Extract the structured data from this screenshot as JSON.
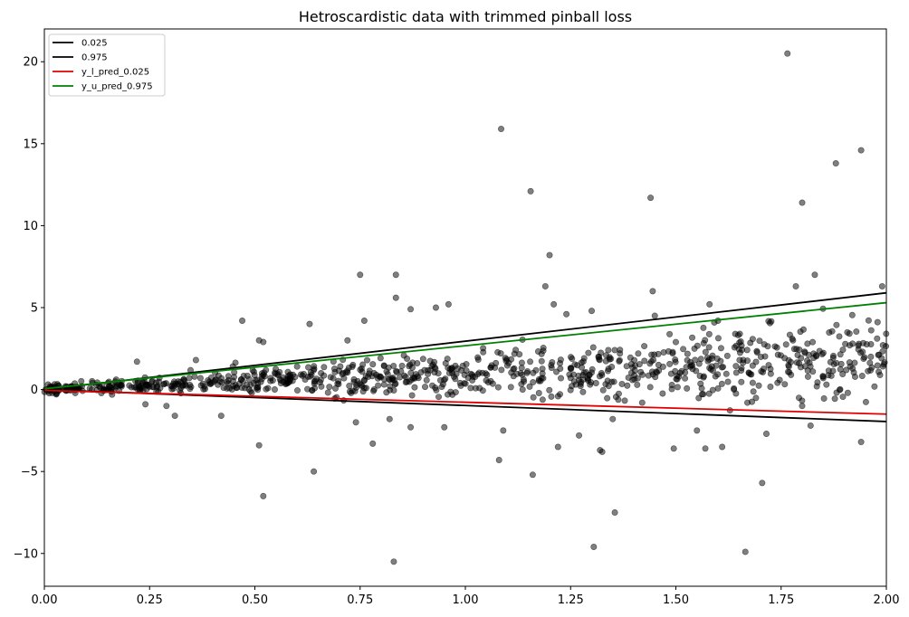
{
  "chart_data": {
    "type": "scatter",
    "title": "Hetroscardistic data with trimmed pinball loss",
    "xlabel": "",
    "ylabel": "",
    "xlim": [
      0,
      2.0
    ],
    "ylim": [
      -12,
      22
    ],
    "x_ticks": [
      0.0,
      0.25,
      0.5,
      0.75,
      1.0,
      1.25,
      1.5,
      1.75,
      2.0
    ],
    "x_tick_labels": [
      "0.00",
      "0.25",
      "0.50",
      "0.75",
      "1.00",
      "1.25",
      "1.50",
      "1.75",
      "2.00"
    ],
    "y_ticks": [
      -10,
      -5,
      0,
      5,
      10,
      15,
      20
    ],
    "y_tick_labels": [
      "−10",
      "−5",
      "0",
      "5",
      "10",
      "15",
      "20"
    ],
    "grid": false,
    "legend_position": "top-left",
    "lines": [
      {
        "name": "0.025",
        "color": "#000000",
        "x": [
          0,
          2.0
        ],
        "y": [
          0,
          -1.95
        ]
      },
      {
        "name": "0.975",
        "color": "#000000",
        "x": [
          0,
          2.0
        ],
        "y": [
          0,
          5.9
        ]
      },
      {
        "name": "y_l_pred_0.025",
        "color": "#e00000",
        "x": [
          0,
          2.0
        ],
        "y": [
          -0.05,
          -1.5
        ]
      },
      {
        "name": "y_u_pred_0.975",
        "color": "#008000",
        "x": [
          0,
          2.0
        ],
        "y": [
          0.05,
          5.3
        ]
      }
    ],
    "scatter": {
      "color": "#000000",
      "opacity": 0.5,
      "n_points": 1000,
      "x_range": [
        0,
        2.0
      ],
      "points": [
        [
          1.765,
          20.5
        ],
        [
          1.085,
          15.9
        ],
        [
          1.94,
          14.6
        ],
        [
          1.88,
          13.8
        ],
        [
          1.155,
          12.1
        ],
        [
          1.44,
          11.7
        ],
        [
          1.8,
          11.4
        ],
        [
          1.2,
          8.2
        ],
        [
          0.75,
          7.0
        ],
        [
          0.835,
          7.0
        ],
        [
          1.83,
          7.0
        ],
        [
          1.19,
          6.3
        ],
        [
          1.785,
          6.3
        ],
        [
          1.99,
          6.3
        ],
        [
          1.445,
          6.0
        ],
        [
          0.835,
          5.6
        ],
        [
          0.96,
          5.2
        ],
        [
          1.21,
          5.2
        ],
        [
          1.58,
          5.2
        ],
        [
          0.87,
          4.9
        ],
        [
          0.93,
          5.0
        ],
        [
          1.3,
          4.8
        ],
        [
          1.24,
          4.6
        ],
        [
          0.47,
          4.2
        ],
        [
          0.76,
          4.2
        ],
        [
          0.63,
          4.0
        ],
        [
          1.6,
          4.2
        ],
        [
          1.45,
          4.5
        ],
        [
          0.51,
          3.0
        ],
        [
          0.52,
          2.9
        ],
        [
          0.72,
          3.0
        ],
        [
          0.36,
          1.8
        ],
        [
          0.22,
          1.7
        ],
        [
          0.51,
          -3.4
        ],
        [
          0.52,
          -6.5
        ],
        [
          0.64,
          -5.0
        ],
        [
          0.74,
          -2.0
        ],
        [
          0.78,
          -3.3
        ],
        [
          0.82,
          -1.8
        ],
        [
          0.87,
          -2.3
        ],
        [
          0.95,
          -2.3
        ],
        [
          1.08,
          -4.3
        ],
        [
          1.09,
          -2.5
        ],
        [
          1.16,
          -5.2
        ],
        [
          1.22,
          -3.5
        ],
        [
          1.27,
          -2.8
        ],
        [
          1.325,
          -3.8
        ],
        [
          1.32,
          -3.7
        ],
        [
          1.355,
          -7.5
        ],
        [
          1.305,
          -9.6
        ],
        [
          1.495,
          -3.6
        ],
        [
          1.55,
          -2.5
        ],
        [
          1.57,
          -3.6
        ],
        [
          1.61,
          -3.5
        ],
        [
          1.665,
          -9.9
        ],
        [
          1.705,
          -5.7
        ],
        [
          1.715,
          -2.7
        ],
        [
          1.94,
          -3.2
        ],
        [
          0.83,
          -10.5
        ],
        [
          0.42,
          -1.6
        ],
        [
          0.31,
          -1.6
        ],
        [
          0.24,
          -0.9
        ],
        [
          0.29,
          -1.0
        ],
        [
          1.67,
          -0.8
        ],
        [
          1.8,
          -1.0
        ],
        [
          1.82,
          -2.2
        ],
        [
          1.42,
          -0.8
        ],
        [
          1.35,
          -1.8
        ]
      ]
    }
  }
}
